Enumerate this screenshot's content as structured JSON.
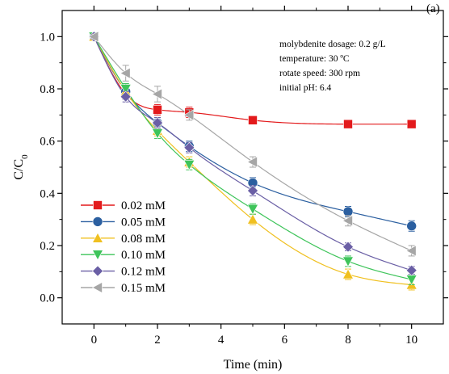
{
  "chart_data": {
    "type": "scatter",
    "panel_label": "(a)",
    "xlabel": "Time (min)",
    "ylabel_main": "C/C",
    "ylabel_sub": "0",
    "xlim": [
      -1,
      11
    ],
    "ylim": [
      -0.1,
      1.1
    ],
    "xticks": [
      0,
      2,
      4,
      6,
      8,
      10
    ],
    "yticks": [
      0.0,
      0.2,
      0.4,
      0.6,
      0.8,
      1.0
    ],
    "xtick_labels": [
      "0",
      "2",
      "4",
      "6",
      "8",
      "10"
    ],
    "ytick_labels": [
      "0.0",
      "0.2",
      "0.4",
      "0.6",
      "0.8",
      "1.0"
    ],
    "annotations": [
      "molybdenite dosage: 0.2 g/L",
      "temperature: 30 ºC",
      "rotate speed: 300 rpm",
      "initial pH: 6.4"
    ],
    "legend_position": "lower-left",
    "x": [
      0,
      1,
      2,
      3,
      5,
      8,
      10
    ],
    "series": [
      {
        "name": "0.02 mM",
        "marker": "square",
        "color": "#e31a1c",
        "values": [
          1.0,
          0.78,
          0.72,
          0.71,
          0.68,
          0.665,
          0.665
        ],
        "errors": [
          0.01,
          0.02,
          0.02,
          0.02,
          0.01,
          0.015,
          0.01
        ]
      },
      {
        "name": "0.05 mM",
        "marker": "circle",
        "color": "#2b5fa0",
        "values": [
          1.0,
          0.79,
          0.67,
          0.58,
          0.44,
          0.33,
          0.275
        ],
        "errors": [
          0.01,
          0.03,
          0.02,
          0.02,
          0.02,
          0.02,
          0.02
        ]
      },
      {
        "name": "0.08 mM",
        "marker": "triangle-up",
        "color": "#f0c020",
        "values": [
          1.0,
          0.79,
          0.64,
          0.52,
          0.3,
          0.09,
          0.05
        ],
        "errors": [
          0.01,
          0.02,
          0.02,
          0.02,
          0.02,
          0.02,
          0.02
        ]
      },
      {
        "name": "0.10 mM",
        "marker": "triangle-down",
        "color": "#3ec45a",
        "values": [
          1.0,
          0.8,
          0.63,
          0.51,
          0.34,
          0.14,
          0.07
        ],
        "errors": [
          0.01,
          0.02,
          0.02,
          0.02,
          0.02,
          0.02,
          0.02
        ]
      },
      {
        "name": "0.12 mM",
        "marker": "diamond",
        "color": "#6a5fa5",
        "values": [
          1.0,
          0.77,
          0.67,
          0.575,
          0.41,
          0.195,
          0.105
        ],
        "errors": [
          0.01,
          0.02,
          0.02,
          0.02,
          0.02,
          0.015,
          0.015
        ]
      },
      {
        "name": "0.15 mM",
        "marker": "triangle-left",
        "color": "#a6a6a6",
        "values": [
          1.0,
          0.86,
          0.78,
          0.7,
          0.52,
          0.295,
          0.18
        ],
        "errors": [
          0.01,
          0.03,
          0.03,
          0.02,
          0.02,
          0.02,
          0.02
        ]
      }
    ]
  }
}
